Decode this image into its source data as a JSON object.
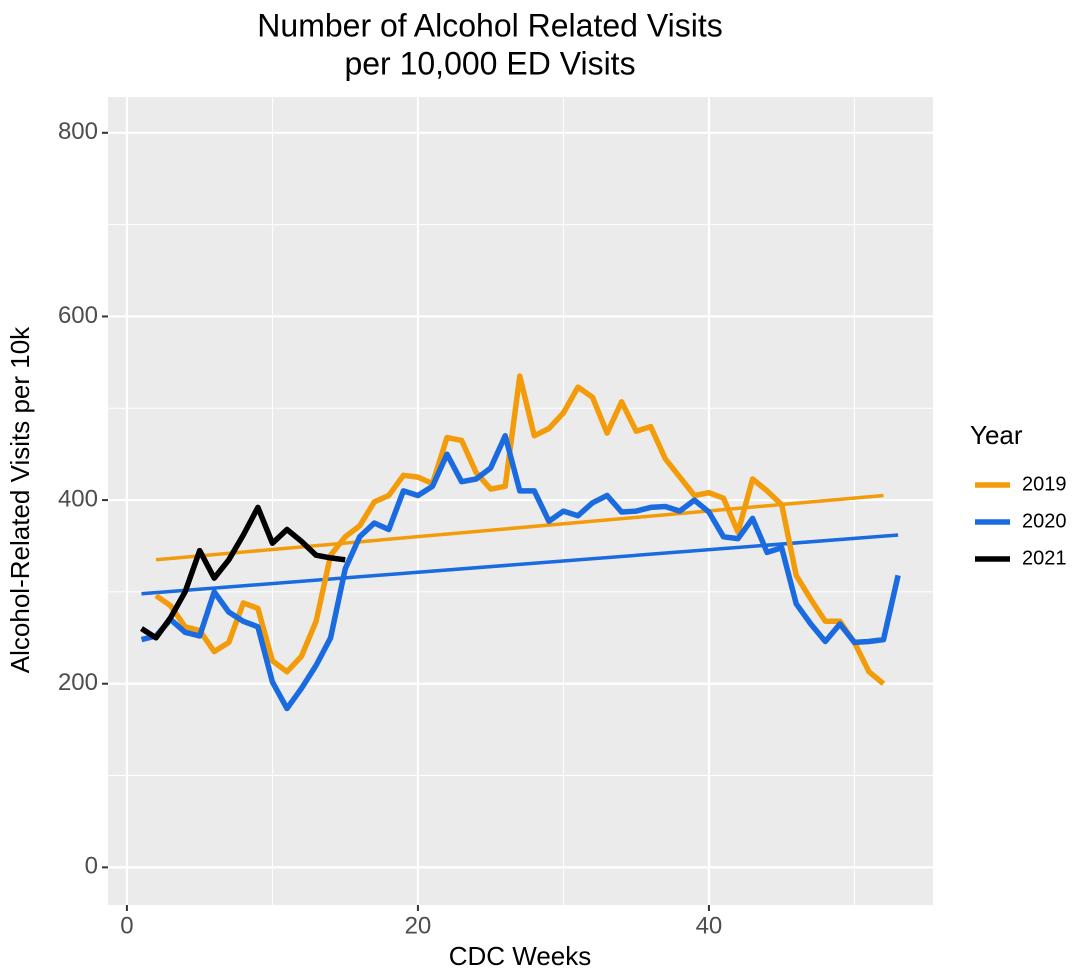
{
  "chart_data": {
    "type": "line",
    "title": [
      "Number of Alcohol Related Visits",
      "per 10,000 ED Visits"
    ],
    "x_label": "CDC Weeks",
    "y_label": "Alcohol-Related Visits per 10k",
    "legend_title": "Year",
    "legend_position": "right",
    "grid": true,
    "xlim": [
      -1.3,
      55.4
    ],
    "ylim": [
      -41,
      839
    ],
    "xticks": [
      0,
      20,
      40
    ],
    "yticks": [
      0,
      200,
      400,
      600,
      800
    ],
    "minor_xticks": [
      10,
      30,
      50
    ],
    "minor_yticks": [
      100,
      300,
      500,
      700
    ],
    "series": [
      {
        "name": "2019",
        "color": "#f39c0b",
        "x": [
          2,
          3,
          4,
          5,
          6,
          7,
          8,
          9,
          10,
          11,
          12,
          13,
          14,
          15,
          16,
          17,
          18,
          19,
          20,
          21,
          22,
          23,
          24,
          25,
          26,
          27,
          28,
          29,
          30,
          31,
          32,
          33,
          34,
          35,
          36,
          37,
          38,
          39,
          40,
          41,
          42,
          43,
          44,
          45,
          46,
          47,
          48,
          49,
          50,
          51,
          52
        ],
        "values": [
          296,
          285,
          262,
          258,
          235,
          245,
          288,
          282,
          225,
          213,
          230,
          268,
          340,
          360,
          372,
          398,
          405,
          427,
          425,
          418,
          468,
          465,
          430,
          412,
          415,
          535,
          470,
          478,
          495,
          523,
          512,
          473,
          507,
          475,
          480,
          445,
          425,
          405,
          408,
          402,
          365,
          423,
          410,
          395,
          318,
          292,
          268,
          268,
          245,
          213,
          200
        ],
        "trend": {
          "x": [
            2,
            52
          ],
          "values": [
            335,
            405
          ]
        }
      },
      {
        "name": "2020",
        "color": "#1a6ae0",
        "x": [
          1,
          2,
          3,
          4,
          5,
          6,
          7,
          8,
          9,
          10,
          11,
          12,
          13,
          14,
          15,
          16,
          17,
          18,
          19,
          20,
          21,
          22,
          23,
          24,
          25,
          26,
          27,
          28,
          29,
          30,
          31,
          32,
          33,
          34,
          35,
          36,
          37,
          38,
          39,
          40,
          41,
          42,
          43,
          44,
          45,
          46,
          47,
          48,
          49,
          50,
          51,
          52,
          53
        ],
        "values": [
          248,
          252,
          270,
          256,
          252,
          300,
          278,
          268,
          262,
          202,
          173,
          195,
          220,
          250,
          325,
          360,
          375,
          368,
          410,
          405,
          415,
          450,
          420,
          423,
          435,
          470,
          410,
          410,
          377,
          388,
          383,
          397,
          405,
          387,
          388,
          392,
          393,
          388,
          400,
          387,
          360,
          358,
          380,
          343,
          348,
          287,
          265,
          246,
          265,
          245,
          246,
          248,
          318
        ],
        "trend": {
          "x": [
            1,
            53
          ],
          "values": [
            298,
            362
          ]
        }
      },
      {
        "name": "2021",
        "color": "#000000",
        "x": [
          1,
          2,
          3,
          4,
          5,
          6,
          7,
          8,
          9,
          10,
          11,
          12,
          13,
          14,
          15
        ],
        "values": [
          260,
          250,
          272,
          300,
          345,
          315,
          335,
          362,
          392,
          353,
          368,
          355,
          340,
          337,
          335
        ]
      }
    ]
  }
}
